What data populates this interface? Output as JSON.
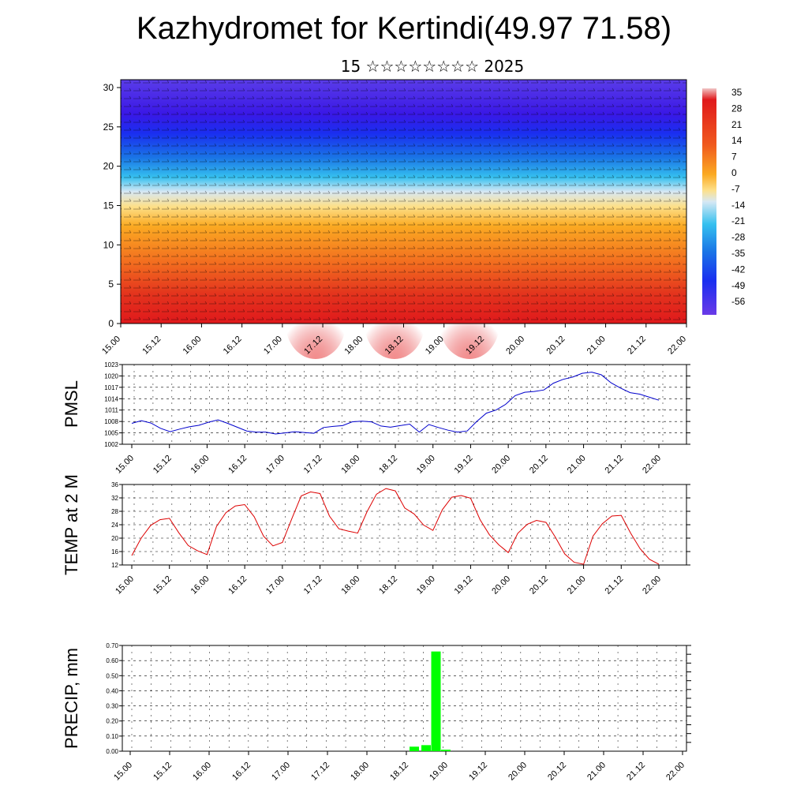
{
  "title": "Kazhydromet for Kertindi(49.97 71.58)",
  "subtitle": "15 ☆☆☆☆☆☆☆☆ 2025",
  "x_tick_labels": [
    "15.00",
    "15.12",
    "16.00",
    "16.12",
    "17.00",
    "17.12",
    "18.00",
    "18.12",
    "19.00",
    "19.12",
    "20.00",
    "20.12",
    "21.00",
    "21.12",
    "22.00"
  ],
  "chart_data": [
    {
      "type": "heatmap",
      "panel": "height-time cross section",
      "y_ticks": [
        0,
        5,
        10,
        15,
        20,
        25,
        30
      ],
      "ylim": [
        0,
        31
      ],
      "colorbar_labels": [
        "35",
        "28",
        "21",
        "14",
        "7",
        "0",
        "-7",
        "-14",
        "-21",
        "-28",
        "-35",
        "-42",
        "-49",
        "-56"
      ],
      "colors": {
        "warm": "#e0191c",
        "mid": "#fde08a",
        "cold": "#3a1ff0"
      }
    },
    {
      "type": "line",
      "ylabel": "PMSL",
      "ylim": [
        1002,
        1023
      ],
      "y_ticks": [
        "1002",
        "1005",
        "1008",
        "1011",
        "1014",
        "1017",
        "1020",
        "1023"
      ],
      "color": "#0000cc",
      "series": [
        {
          "values": [
            1007.5,
            1008.2,
            1007.6,
            1006.2,
            1005.3,
            1006.0,
            1006.6,
            1007.0,
            1007.8,
            1008.4,
            1007.5,
            1006.5,
            1005.5,
            1005.2,
            1005.2,
            1004.7,
            1005.0,
            1005.3,
            1005.1,
            1004.9,
            1006.4,
            1006.7,
            1006.9,
            1007.9,
            1008.1,
            1007.9,
            1006.8,
            1006.5,
            1006.9,
            1007.3,
            1005.2,
            1007.2,
            1006.4,
            1005.7,
            1005.2,
            1005.5,
            1008.0,
            1010.2,
            1011.0,
            1012.5,
            1014.8,
            1015.7,
            1015.9,
            1016.3,
            1018.1,
            1019.1,
            1019.7,
            1020.7,
            1021.0,
            1020.3,
            1018.2,
            1016.8,
            1015.6,
            1015.2,
            1014.4,
            1013.6
          ]
        }
      ]
    },
    {
      "type": "line",
      "ylabel": "TEMP at 2 M",
      "ylim": [
        12,
        36
      ],
      "y_ticks": [
        "12",
        "16",
        "20",
        "24",
        "28",
        "32",
        "36"
      ],
      "color": "#dd0000",
      "series": [
        {
          "values": [
            14.8,
            20.0,
            23.8,
            25.5,
            25.9,
            21.6,
            17.8,
            16.2,
            15.1,
            23.5,
            27.6,
            29.6,
            30.0,
            26.4,
            20.6,
            17.7,
            18.7,
            25.8,
            32.6,
            33.8,
            33.3,
            26.6,
            22.8,
            22.1,
            21.5,
            27.9,
            33.1,
            34.8,
            34.1,
            29.0,
            27.2,
            23.9,
            22.3,
            28.5,
            32.2,
            32.7,
            31.9,
            25.5,
            21.0,
            18.0,
            15.7,
            21.4,
            24.1,
            25.3,
            24.7,
            20.3,
            15.3,
            12.8,
            12.2,
            20.6,
            24.3,
            26.6,
            26.8,
            21.5,
            16.9,
            13.7,
            12.2
          ]
        }
      ]
    },
    {
      "type": "bar",
      "ylabel": "PRECIP, mm",
      "ylim": [
        0,
        0.7
      ],
      "y_ticks": [
        "0.00",
        "0.10",
        "0.20",
        "0.30",
        "0.40",
        "0.50",
        "0.60",
        "0.70"
      ],
      "color": "#00ff00",
      "bars": [
        {
          "x": 18.6,
          "value": 0.03
        },
        {
          "x": 18.75,
          "value": 0.04
        },
        {
          "x": 18.875,
          "value": 0.66
        },
        {
          "x": 19.0,
          "value": 0.01
        }
      ]
    }
  ]
}
